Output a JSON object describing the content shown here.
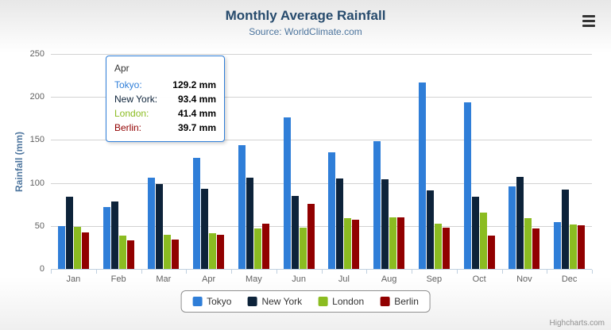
{
  "chart_data": {
    "type": "bar",
    "title": "Monthly Average Rainfall",
    "subtitle": "Source: WorldClimate.com",
    "categories": [
      "Jan",
      "Feb",
      "Mar",
      "Apr",
      "May",
      "Jun",
      "Jul",
      "Aug",
      "Sep",
      "Oct",
      "Nov",
      "Dec"
    ],
    "series": [
      {
        "name": "Tokyo",
        "color": "#2f7ed8",
        "values": [
          49.9,
          71.5,
          106.4,
          129.2,
          144.0,
          176.0,
          135.6,
          148.5,
          216.4,
          194.1,
          95.6,
          54.4
        ]
      },
      {
        "name": "New York",
        "color": "#0d233a",
        "values": [
          83.6,
          78.8,
          98.5,
          93.4,
          106.0,
          84.5,
          105.0,
          104.3,
          91.2,
          83.5,
          106.6,
          92.3
        ]
      },
      {
        "name": "London",
        "color": "#8bbc21",
        "values": [
          48.9,
          38.8,
          39.3,
          41.4,
          47.0,
          48.3,
          59.0,
          59.6,
          52.4,
          65.2,
          59.3,
          51.2
        ]
      },
      {
        "name": "Berlin",
        "color": "#910000",
        "values": [
          42.4,
          33.2,
          34.5,
          39.7,
          52.6,
          75.5,
          57.4,
          60.4,
          47.6,
          39.1,
          46.8,
          51.1
        ]
      }
    ],
    "xlabel": "",
    "ylabel": "Rainfall (mm)",
    "ylim": [
      0,
      250
    ],
    "ytick_step": 50,
    "grid": true,
    "legend_position": "bottom"
  },
  "tooltip": {
    "header": "Apr",
    "border_color": "#2f7ed8",
    "rows": [
      {
        "label": "Tokyo:",
        "value": "129.2 mm",
        "color": "#2f7ed8"
      },
      {
        "label": "New York:",
        "value": "93.4 mm",
        "color": "#0d233a"
      },
      {
        "label": "London:",
        "value": "41.4 mm",
        "color": "#8bbc21"
      },
      {
        "label": "Berlin:",
        "value": "39.7 mm",
        "color": "#910000"
      }
    ]
  },
  "credits": "Highcharts.com",
  "icons": {
    "export_menu": "hamburger-menu-icon"
  },
  "colors": {
    "title": "#274b6d",
    "subtitle": "#4d759e",
    "axis_labels": "#606060",
    "gridline": "#d2d2d2",
    "axis_line": "#C0D0E0",
    "legend_border": "#909090"
  }
}
